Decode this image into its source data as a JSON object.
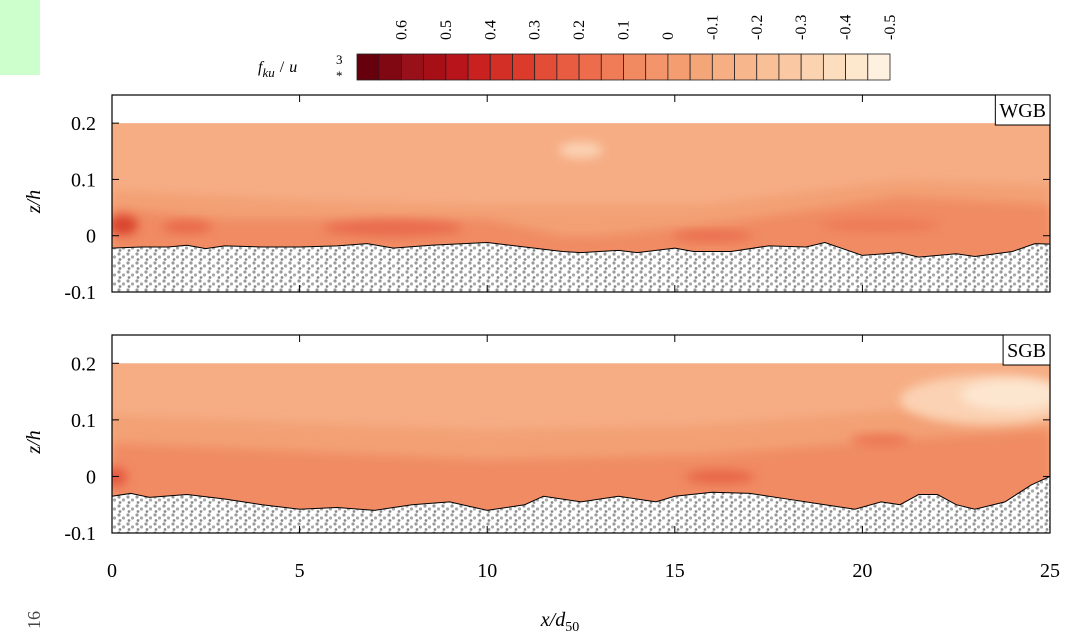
{
  "colorbar": {
    "label": {
      "f": "f",
      "sub": "ku",
      "slash": "/",
      "u": "u",
      "star": "*",
      "power": "3"
    },
    "ticks": [
      0.6,
      0.5,
      0.4,
      0.3,
      0.2,
      0.1,
      0,
      -0.1,
      -0.2,
      -0.3,
      -0.4,
      -0.5
    ],
    "levels": [
      0.7,
      0.65,
      0.6,
      0.55,
      0.5,
      0.45,
      0.4,
      0.35,
      0.3,
      0.25,
      0.2,
      0.15,
      0.1,
      0.05,
      0,
      -0.05,
      -0.1,
      -0.15,
      -0.2,
      -0.25,
      -0.3,
      -0.35,
      -0.4,
      -0.45,
      -0.5
    ],
    "colors": [
      "#67000d",
      "#7f0812",
      "#98101a",
      "#a50f15",
      "#b8141b",
      "#c9211f",
      "#d42f26",
      "#dc3b2c",
      "#e34c37",
      "#e85d42",
      "#ec6c4c",
      "#ef7b57",
      "#f18961",
      "#f3946a",
      "#f49d71",
      "#f5a679",
      "#f6ae82",
      "#f7b68c",
      "#f9c097",
      "#fac9a3",
      "#fbd3b0",
      "#fcddbe",
      "#fde7cd",
      "#fef1e0"
    ]
  },
  "chart_data": [
    {
      "type": "contour",
      "panel_label": "WGB",
      "ylabel": "z/h",
      "xlim": [
        0,
        25
      ],
      "ylim": [
        -0.1,
        0.25
      ],
      "xticks": [
        0,
        5,
        10,
        15,
        20,
        25
      ],
      "yticks": [
        0.2,
        0.1,
        0,
        -0.1
      ],
      "show_xticklabels": false,
      "field_top": 0.2,
      "bed": {
        "x": [
          0,
          0.8,
          1.5,
          2,
          2.5,
          3,
          4,
          5,
          6,
          6.8,
          7.5,
          8.5,
          10,
          11,
          12,
          12.5,
          13.5,
          14,
          15,
          15.5,
          16.5,
          17.5,
          18.5,
          19,
          20,
          21,
          21.5,
          22.5,
          23,
          24,
          24.6,
          25
        ],
        "z": [
          -0.022,
          -0.02,
          -0.02,
          -0.017,
          -0.023,
          -0.018,
          -0.02,
          -0.02,
          -0.018,
          -0.014,
          -0.022,
          -0.017,
          -0.012,
          -0.02,
          -0.028,
          -0.03,
          -0.026,
          -0.03,
          -0.022,
          -0.028,
          -0.028,
          -0.018,
          -0.02,
          -0.012,
          -0.035,
          -0.03,
          -0.038,
          -0.032,
          -0.037,
          -0.028,
          -0.014,
          -0.015
        ]
      }
    },
    {
      "type": "contour",
      "panel_label": "SGB",
      "ylabel": "z/h",
      "xlabel": {
        "main": "x/d",
        "sub": "50"
      },
      "xlim": [
        0,
        25
      ],
      "ylim": [
        -0.1,
        0.25
      ],
      "xticks": [
        0,
        5,
        10,
        15,
        20,
        25
      ],
      "yticks": [
        0.2,
        0.1,
        0,
        -0.1
      ],
      "show_xticklabels": true,
      "field_top": 0.2,
      "bed": {
        "x": [
          0,
          0.5,
          1,
          2,
          3,
          4,
          5,
          6,
          7,
          8,
          9,
          10,
          11,
          11.5,
          12.5,
          13.5,
          14.5,
          15,
          16,
          17,
          18,
          19,
          19.8,
          20.5,
          21,
          21.5,
          22,
          22.5,
          23,
          23.8,
          24.5,
          25
        ],
        "z": [
          -0.035,
          -0.03,
          -0.037,
          -0.032,
          -0.04,
          -0.05,
          -0.058,
          -0.055,
          -0.06,
          -0.05,
          -0.045,
          -0.06,
          -0.05,
          -0.035,
          -0.045,
          -0.035,
          -0.045,
          -0.035,
          -0.028,
          -0.03,
          -0.04,
          -0.05,
          -0.058,
          -0.045,
          -0.05,
          -0.032,
          -0.032,
          -0.05,
          -0.058,
          -0.045,
          -0.015,
          0
        ]
      }
    }
  ],
  "page_number": "16"
}
